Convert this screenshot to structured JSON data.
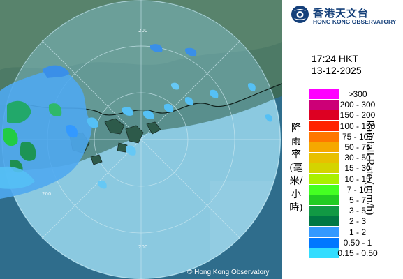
{
  "map": {
    "range_ring_labels": [
      "200",
      "200",
      "200"
    ],
    "copyright": "© Hong Kong Observatory"
  },
  "logo": {
    "name_zh": "香港天文台",
    "name_en": "HONG KONG OBSERVATORY",
    "icon": "hko-logo-icon"
  },
  "timestamp": {
    "time": "17:24 HKT",
    "date": "13-12-2025"
  },
  "legend": {
    "title_zh": "降雨率(毫米/小時)",
    "title_en": "Rainfall Rate (mm/h)",
    "items": [
      {
        "label": ">300",
        "color": "#ff00ff"
      },
      {
        "label": "200 - 300",
        "color": "#cc0077"
      },
      {
        "label": "150 - 200",
        "color": "#dd0022"
      },
      {
        "label": "100 - 150",
        "color": "#ff2200"
      },
      {
        "label": "75 - 100",
        "color": "#ff7700"
      },
      {
        "label": "50 - 75",
        "color": "#f5a800"
      },
      {
        "label": "30 - 50",
        "color": "#e8c000"
      },
      {
        "label": "15 - 30",
        "color": "#d4d400"
      },
      {
        "label": "10 - 15",
        "color": "#aaf000"
      },
      {
        "label": "7 - 10",
        "color": "#44ff22"
      },
      {
        "label": "5 - 7",
        "color": "#22cc22"
      },
      {
        "label": "3 - 5",
        "color": "#119944"
      },
      {
        "label": "2 - 3",
        "color": "#007744"
      },
      {
        "label": "1 - 2",
        "color": "#3399ff"
      },
      {
        "label": "0.50 - 1",
        "color": "#0077ff"
      },
      {
        "label": "0.15 - 0.50",
        "color": "#33ddff"
      }
    ]
  }
}
